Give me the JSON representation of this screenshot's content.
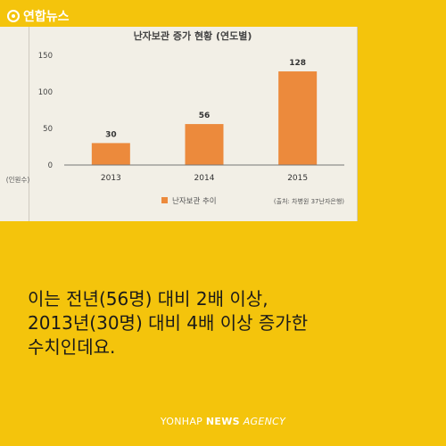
{
  "brand": {
    "logo_text": "연합뉴스",
    "icon": "yonhap-logo-icon"
  },
  "chart_data": {
    "type": "bar",
    "title": "난자보관 증가 현황 (연도별)",
    "categories": [
      "2013",
      "2014",
      "2015"
    ],
    "values": [
      30,
      56,
      128
    ],
    "ylim": [
      0,
      150
    ],
    "yticks": [
      0,
      50,
      100,
      150
    ],
    "ylabel": "(인원수)",
    "legend": {
      "label": "난자보관 추이",
      "placement": "bottom-left"
    },
    "source": "(출처: 차병원 37난자은행)",
    "bar_color": "#ec8a3c",
    "grid": false
  },
  "body": {
    "lines": [
      "이는 전년(56명) 대비 2배 이상,",
      "2013년(30명) 대비 4배 이상 증가한",
      "수치인데요."
    ]
  },
  "footer": {
    "prefix": "YONHAP",
    "news": "NEWS",
    "agency": "AGENCY"
  },
  "colors": {
    "background": "#f4c40c",
    "chart_background": "#f2efe6",
    "bar": "#ec8a3c"
  }
}
